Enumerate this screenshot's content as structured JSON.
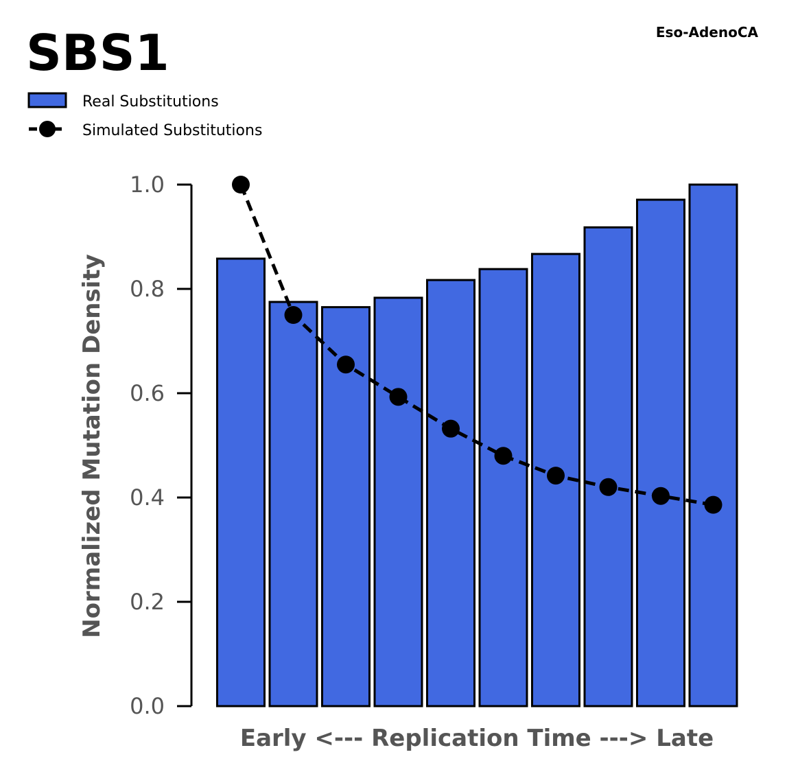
{
  "chart_data": {
    "type": "bar",
    "title": "SBS1",
    "subtitle": "Eso-AdenoCA",
    "xlabel": "Early <--- Replication Time ---> Late",
    "ylabel": "Normalized Mutation Density",
    "ylim": [
      0,
      1.0
    ],
    "yticks": [
      "0.0",
      "0.2",
      "0.4",
      "0.6",
      "0.8",
      "1.0"
    ],
    "grid": false,
    "legend_position": "top-left, above plot",
    "series": [
      {
        "name": "Real Substitutions",
        "kind": "bar",
        "color": "#4169E1",
        "edge_color": "#000000",
        "values": [
          0.858,
          0.775,
          0.765,
          0.783,
          0.817,
          0.838,
          0.867,
          0.918,
          0.971,
          1.0
        ]
      },
      {
        "name": "Simulated Substitutions",
        "kind": "line",
        "style": "dashed with circle markers",
        "color": "#000000",
        "values": [
          1.0,
          0.75,
          0.655,
          0.593,
          0.532,
          0.48,
          0.442,
          0.42,
          0.403,
          0.386
        ]
      }
    ]
  }
}
